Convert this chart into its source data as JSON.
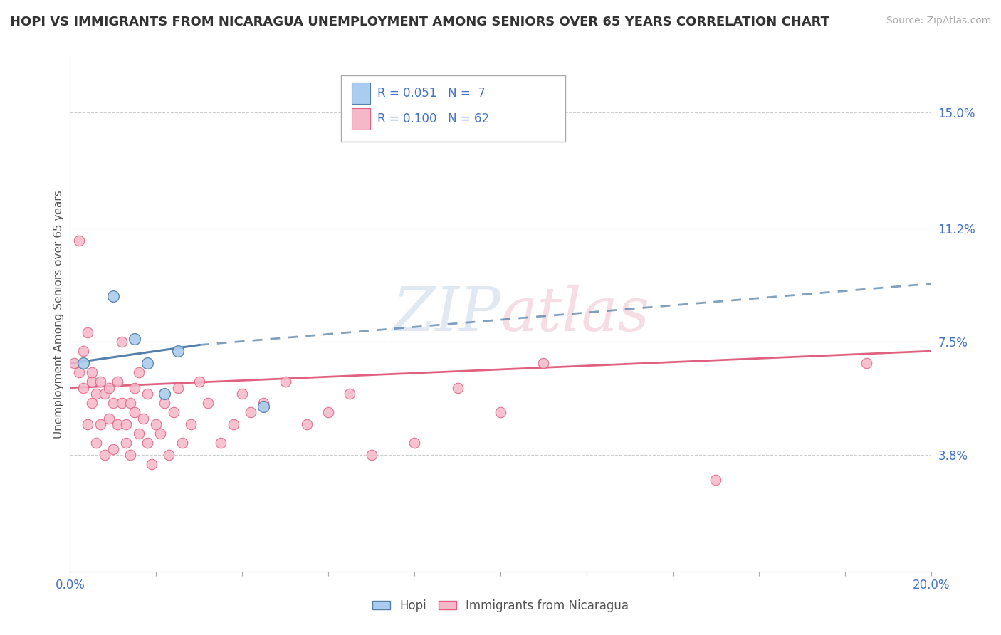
{
  "title": "HOPI VS IMMIGRANTS FROM NICARAGUA UNEMPLOYMENT AMONG SENIORS OVER 65 YEARS CORRELATION CHART",
  "source": "Source: ZipAtlas.com",
  "ylabel": "Unemployment Among Seniors over 65 years",
  "xlim": [
    0.0,
    0.2
  ],
  "ylim": [
    0.0,
    0.168
  ],
  "xtick_positions": [
    0.0,
    0.02,
    0.04,
    0.06,
    0.08,
    0.1,
    0.12,
    0.14,
    0.16,
    0.18,
    0.2
  ],
  "xtick_label_positions": [
    0.0,
    0.2
  ],
  "xtick_labels_at_ends": [
    "0.0%",
    "20.0%"
  ],
  "right_ytick_vals": [
    0.038,
    0.075,
    0.112,
    0.15
  ],
  "right_ytick_labels": [
    "3.8%",
    "7.5%",
    "11.2%",
    "15.0%"
  ],
  "hopi_color": "#aaccee",
  "nicaragua_color": "#f5b8c8",
  "hopi_line_color": "#5580aa",
  "nicaragua_line_color": "#e06080",
  "hopi_R": 0.051,
  "hopi_N": 7,
  "nicaragua_R": 0.1,
  "nicaragua_N": 62,
  "watermark_zip": "ZIP",
  "watermark_atlas": "atlas",
  "hopi_x": [
    0.003,
    0.01,
    0.015,
    0.018,
    0.022,
    0.025,
    0.045
  ],
  "hopi_y": [
    0.068,
    0.09,
    0.076,
    0.068,
    0.058,
    0.072,
    0.054
  ],
  "nicaragua_x": [
    0.001,
    0.002,
    0.002,
    0.003,
    0.003,
    0.004,
    0.004,
    0.005,
    0.005,
    0.005,
    0.006,
    0.006,
    0.007,
    0.007,
    0.008,
    0.008,
    0.009,
    0.009,
    0.01,
    0.01,
    0.011,
    0.011,
    0.012,
    0.012,
    0.013,
    0.013,
    0.014,
    0.014,
    0.015,
    0.015,
    0.016,
    0.016,
    0.017,
    0.018,
    0.018,
    0.019,
    0.02,
    0.021,
    0.022,
    0.023,
    0.024,
    0.025,
    0.026,
    0.028,
    0.03,
    0.032,
    0.035,
    0.038,
    0.04,
    0.042,
    0.045,
    0.05,
    0.055,
    0.06,
    0.065,
    0.07,
    0.08,
    0.09,
    0.1,
    0.11,
    0.15,
    0.185
  ],
  "nicaragua_y": [
    0.068,
    0.108,
    0.065,
    0.072,
    0.06,
    0.048,
    0.078,
    0.062,
    0.055,
    0.065,
    0.042,
    0.058,
    0.048,
    0.062,
    0.058,
    0.038,
    0.06,
    0.05,
    0.04,
    0.055,
    0.048,
    0.062,
    0.055,
    0.075,
    0.048,
    0.042,
    0.055,
    0.038,
    0.052,
    0.06,
    0.045,
    0.065,
    0.05,
    0.042,
    0.058,
    0.035,
    0.048,
    0.045,
    0.055,
    0.038,
    0.052,
    0.06,
    0.042,
    0.048,
    0.062,
    0.055,
    0.042,
    0.048,
    0.058,
    0.052,
    0.055,
    0.062,
    0.048,
    0.052,
    0.058,
    0.038,
    0.042,
    0.06,
    0.052,
    0.068,
    0.03,
    0.068
  ],
  "hopi_trend_x0": 0.0,
  "hopi_trend_x_solid_end": 0.03,
  "hopi_trend_x1": 0.2,
  "hopi_trend_y0": 0.068,
  "hopi_trend_y_solid_end": 0.074,
  "hopi_trend_y1": 0.094,
  "nic_trend_x0": 0.0,
  "nic_trend_x1": 0.2,
  "nic_trend_y0": 0.06,
  "nic_trend_y1": 0.072
}
